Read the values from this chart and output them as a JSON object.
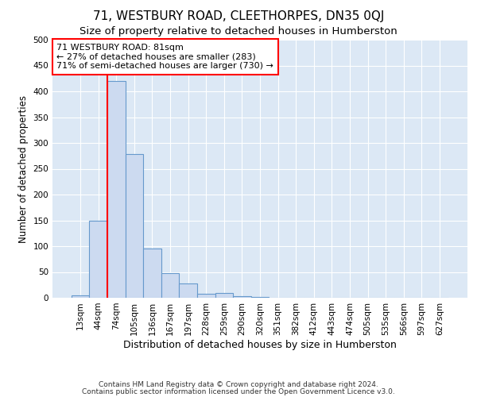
{
  "title": "71, WESTBURY ROAD, CLEETHORPES, DN35 0QJ",
  "subtitle": "Size of property relative to detached houses in Humberston",
  "xlabel": "Distribution of detached houses by size in Humberston",
  "ylabel": "Number of detached properties",
  "footnote1": "Contains HM Land Registry data © Crown copyright and database right 2024.",
  "footnote2": "Contains public sector information licensed under the Open Government Licence v3.0.",
  "categories": [
    "13sqm",
    "44sqm",
    "74sqm",
    "105sqm",
    "136sqm",
    "167sqm",
    "197sqm",
    "228sqm",
    "259sqm",
    "290sqm",
    "320sqm",
    "351sqm",
    "382sqm",
    "412sqm",
    "443sqm",
    "474sqm",
    "505sqm",
    "535sqm",
    "566sqm",
    "597sqm",
    "627sqm"
  ],
  "bar_heights": [
    5,
    150,
    420,
    278,
    95,
    48,
    27,
    7,
    10,
    3,
    2,
    0,
    0,
    0,
    0,
    0,
    0,
    0,
    0,
    0,
    0
  ],
  "bar_color": "#ccdaf0",
  "bar_edgecolor": "#6699cc",
  "bar_linewidth": 0.8,
  "red_line_x": 1.5,
  "annotation_text": "71 WESTBURY ROAD: 81sqm\n← 27% of detached houses are smaller (283)\n71% of semi-detached houses are larger (730) →",
  "annotation_box_color": "white",
  "annotation_box_edgecolor": "red",
  "red_line_color": "red",
  "ylim": [
    0,
    500
  ],
  "yticks": [
    0,
    50,
    100,
    150,
    200,
    250,
    300,
    350,
    400,
    450,
    500
  ],
  "bg_color": "#dce8f5",
  "title_fontsize": 11,
  "subtitle_fontsize": 9.5,
  "xlabel_fontsize": 9,
  "ylabel_fontsize": 8.5,
  "tick_fontsize": 7.5,
  "annot_fontsize": 8,
  "footnote_fontsize": 6.5
}
